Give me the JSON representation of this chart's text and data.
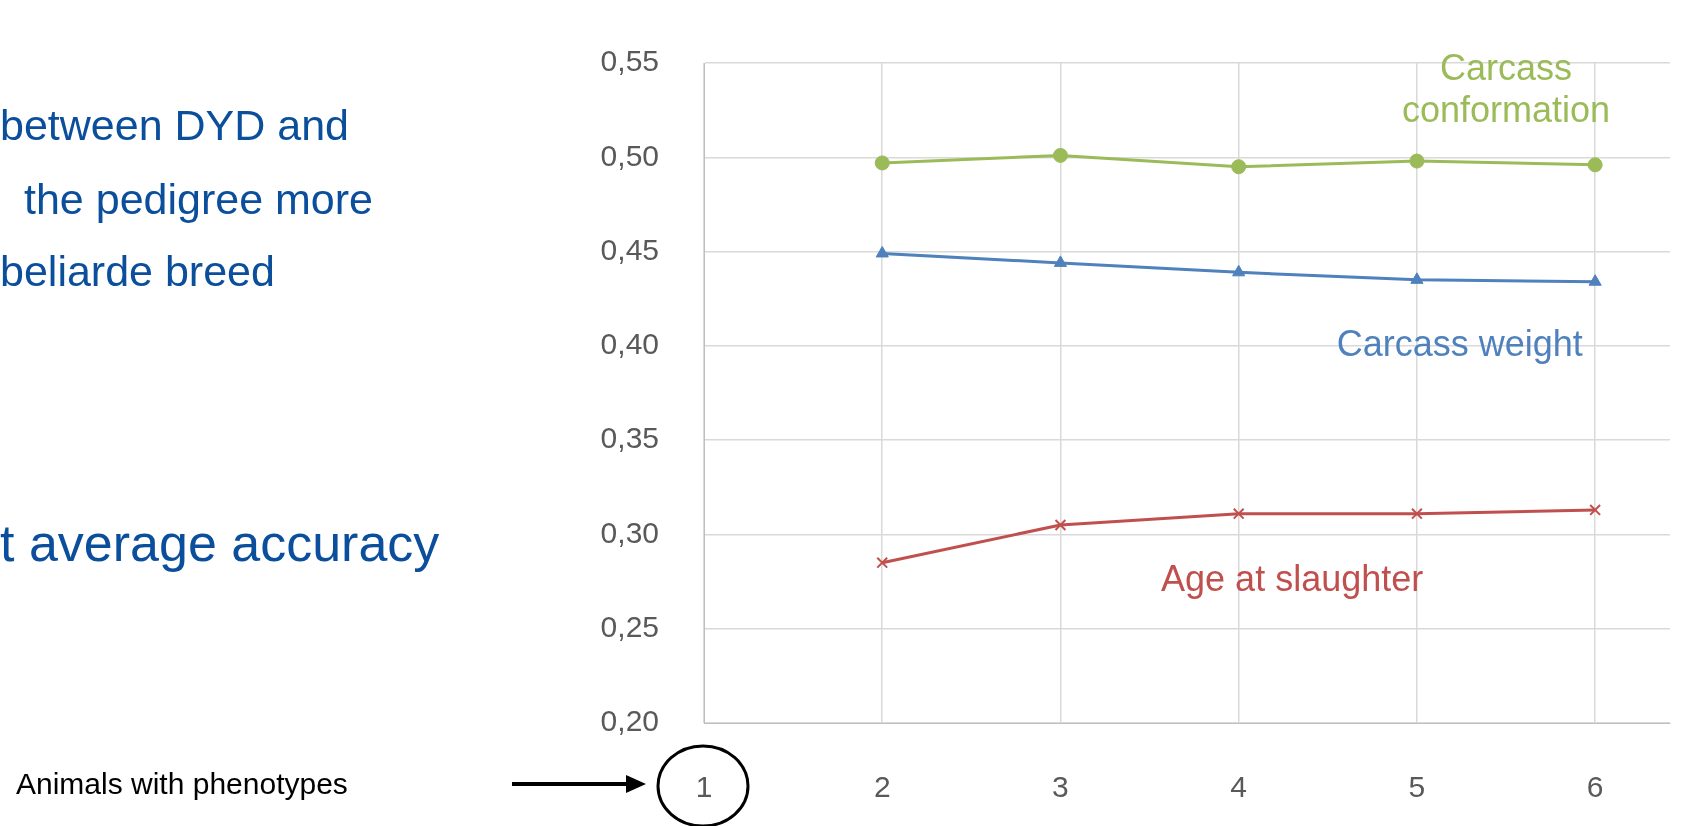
{
  "chart_data": {
    "type": "line",
    "x": [
      2,
      3,
      4,
      5,
      6
    ],
    "xlim": [
      1,
      6.42
    ],
    "xticks": [
      1,
      2,
      3,
      4,
      5,
      6
    ],
    "ylim": [
      0.2,
      0.55
    ],
    "yticks": [
      {
        "value": 0.2,
        "label": "0,20"
      },
      {
        "value": 0.25,
        "label": "0,25"
      },
      {
        "value": 0.3,
        "label": "0,30"
      },
      {
        "value": 0.35,
        "label": "0,35"
      },
      {
        "value": 0.4,
        "label": "0,40"
      },
      {
        "value": 0.45,
        "label": "0,45"
      },
      {
        "value": 0.5,
        "label": "0,50"
      },
      {
        "value": 0.55,
        "label": "0,55"
      }
    ],
    "grid": true,
    "legend": false,
    "series": [
      {
        "name": "Carcass conformation",
        "color": "#9bbb59",
        "marker": "circle",
        "values": [
          0.497,
          0.501,
          0.495,
          0.498,
          0.496
        ]
      },
      {
        "name": "Carcass weight",
        "color": "#4f81bd",
        "marker": "triangle",
        "values": [
          0.449,
          0.444,
          0.439,
          0.435,
          0.434
        ]
      },
      {
        "name": "Age at slaughter",
        "color": "#c0504d",
        "marker": "cross",
        "values": [
          0.285,
          0.305,
          0.311,
          0.311,
          0.313
        ]
      }
    ],
    "annotations": [
      "between DYD and",
      "the pedigree more",
      "beliarde breed",
      "t average accuracy",
      "Animals with phenotypes"
    ]
  }
}
